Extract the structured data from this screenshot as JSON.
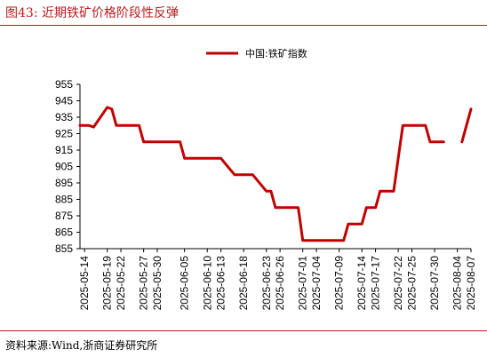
{
  "header": {
    "title": "图43:  近期铁矿价格阶段性反弹"
  },
  "footer": {
    "source": "资料来源:Wind,浙商证券研究所"
  },
  "colors": {
    "accent": "#b71c1c",
    "series": "#c00000"
  },
  "chart_data": {
    "type": "line",
    "title": "",
    "xlabel": "",
    "ylabel": "",
    "ylim": [
      855,
      955
    ],
    "yticks": [
      855,
      865,
      875,
      885,
      895,
      905,
      915,
      925,
      935,
      945,
      955
    ],
    "grid": false,
    "legend_position": "top-center",
    "x_tick_labels": [
      "2025-05-14",
      "2025-05-19",
      "2025-05-22",
      "2025-05-27",
      "2025-05-30",
      "2025-06-05",
      "2025-06-10",
      "2025-06-13",
      "2025-06-18",
      "2025-06-23",
      "2025-06-26",
      "2025-07-01",
      "2025-07-04",
      "2025-07-09",
      "2025-07-14",
      "2025-07-17",
      "2025-07-22",
      "2025-07-25",
      "2025-07-30",
      "2025-08-04",
      "2025-08-07"
    ],
    "series": [
      {
        "name": "中国:铁矿指数",
        "x": [
          "2025-05-13",
          "2025-05-14",
          "2025-05-15",
          "2025-05-16",
          "2025-05-19",
          "2025-05-20",
          "2025-05-21",
          "2025-05-22",
          "2025-05-23",
          "2025-05-26",
          "2025-05-27",
          "2025-05-28",
          "2025-05-29",
          "2025-05-30",
          "2025-06-03",
          "2025-06-04",
          "2025-06-05",
          "2025-06-06",
          "2025-06-09",
          "2025-06-10",
          "2025-06-11",
          "2025-06-12",
          "2025-06-13",
          "2025-06-16",
          "2025-06-17",
          "2025-06-18",
          "2025-06-19",
          "2025-06-20",
          "2025-06-23",
          "2025-06-24",
          "2025-06-25",
          "2025-06-26",
          "2025-06-27",
          "2025-06-30",
          "2025-07-01",
          "2025-07-02",
          "2025-07-03",
          "2025-07-04",
          "2025-07-07",
          "2025-07-08",
          "2025-07-09",
          "2025-07-10",
          "2025-07-11",
          "2025-07-14",
          "2025-07-15",
          "2025-07-16",
          "2025-07-17",
          "2025-07-18",
          "2025-07-21",
          "2025-07-22",
          "2025-07-23",
          "2025-07-24",
          "2025-07-25",
          "2025-07-28",
          "2025-07-29",
          "2025-07-30",
          "2025-07-31",
          "2025-08-01",
          "2025-08-04",
          "2025-08-05",
          "2025-08-06",
          "2025-08-07"
        ],
        "values": [
          930,
          930,
          930,
          929,
          941,
          940,
          930,
          930,
          930,
          930,
          920,
          920,
          920,
          920,
          920,
          920,
          910,
          910,
          910,
          910,
          910,
          910,
          910,
          900,
          900,
          900,
          900,
          900,
          890,
          890,
          880,
          880,
          880,
          880,
          860,
          860,
          860,
          860,
          860,
          860,
          860,
          860,
          870,
          870,
          880,
          880,
          880,
          890,
          890,
          910,
          930,
          930,
          930,
          930,
          920,
          920,
          920,
          920,
          null,
          920,
          930,
          940
        ]
      }
    ]
  }
}
